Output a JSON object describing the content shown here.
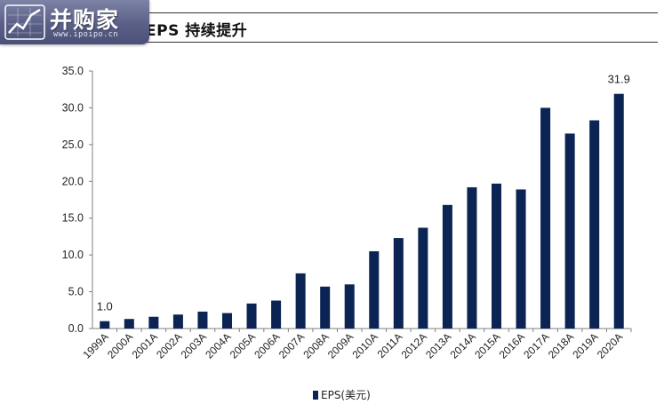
{
  "logo": {
    "name": "并购家",
    "url": "www.ipoipo.cn"
  },
  "header": {
    "title": "EPS 持续提升"
  },
  "chart_data": {
    "type": "bar",
    "categories": [
      "1999A",
      "2000A",
      "2001A",
      "2002A",
      "2003A",
      "2004A",
      "2005A",
      "2006A",
      "2007A",
      "2008A",
      "2009A",
      "2010A",
      "2011A",
      "2012A",
      "2013A",
      "2014A",
      "2015A",
      "2016A",
      "2017A",
      "2018A",
      "2019A",
      "2020A"
    ],
    "series": [
      {
        "name": "EPS(美元)",
        "values": [
          1.0,
          1.3,
          1.6,
          1.9,
          2.3,
          2.1,
          3.4,
          3.8,
          7.5,
          5.7,
          6.0,
          10.5,
          12.3,
          13.7,
          16.8,
          19.2,
          19.7,
          18.9,
          30.0,
          26.5,
          28.3,
          31.9
        ]
      }
    ],
    "yticks": [
      "0.0",
      "5.0",
      "10.0",
      "15.0",
      "20.0",
      "25.0",
      "30.0",
      "35.0"
    ],
    "ylim": [
      0,
      35
    ],
    "data_labels": [
      {
        "category": "1999A",
        "text": "1.0"
      },
      {
        "category": "2020A",
        "text": "31.9"
      }
    ],
    "legend_position": "bottom",
    "bar_color": "#0b2454"
  }
}
